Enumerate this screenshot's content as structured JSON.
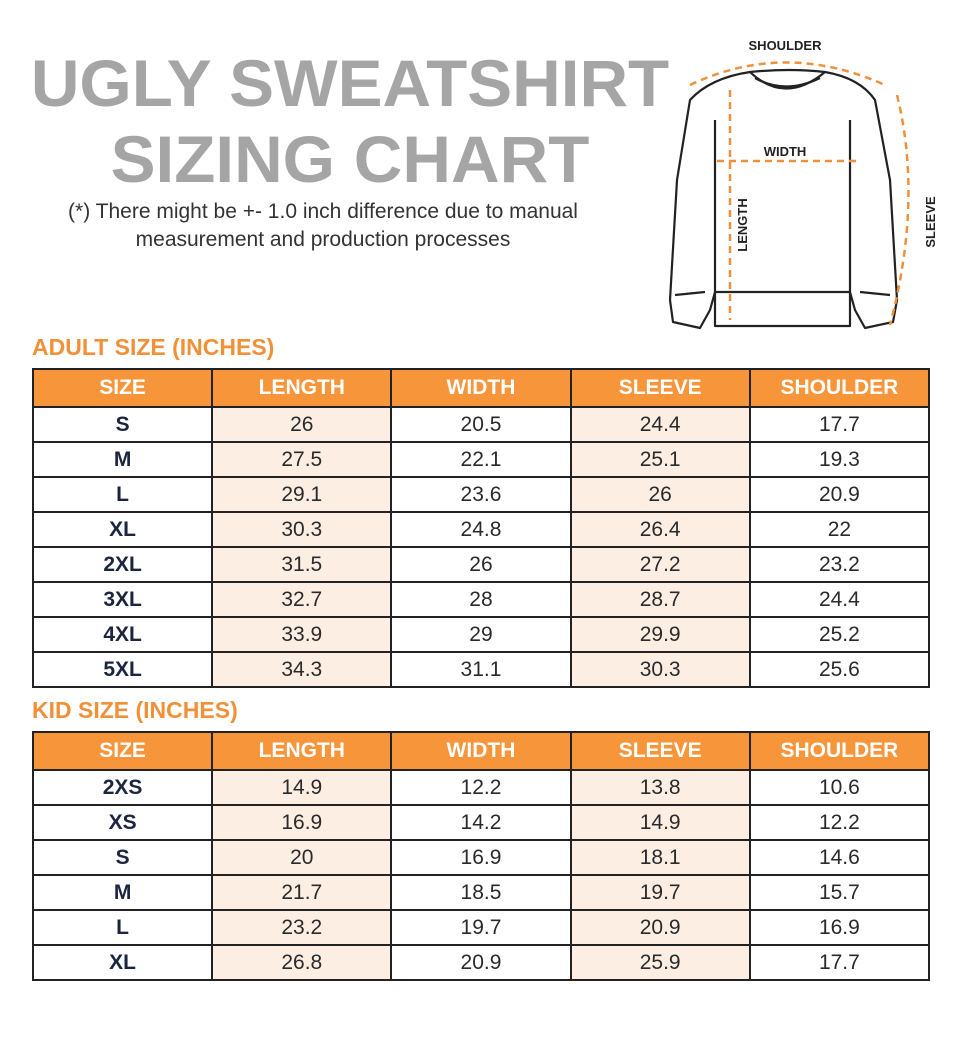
{
  "title": {
    "line1": "UGLY SWEATSHIRT",
    "line2": "SIZING CHART"
  },
  "note": "(*) There might be +- 1.0 inch difference due to manual measurement and production processes",
  "diagram": {
    "shoulder": "SHOULDER",
    "width": "WIDTH",
    "length": "LENGTH",
    "sleeve": "SLEEVE"
  },
  "colors": {
    "accent": "#f7953a",
    "tint": "#fdeee3",
    "title": "#a5a5a5"
  },
  "columns": [
    "SIZE",
    "LENGTH",
    "WIDTH",
    "SLEEVE",
    "SHOULDER"
  ],
  "adult": {
    "label": "ADULT SIZE (INCHES)",
    "rows": [
      [
        "S",
        "26",
        "20.5",
        "24.4",
        "17.7"
      ],
      [
        "M",
        "27.5",
        "22.1",
        "25.1",
        "19.3"
      ],
      [
        "L",
        "29.1",
        "23.6",
        "26",
        "20.9"
      ],
      [
        "XL",
        "30.3",
        "24.8",
        "26.4",
        "22"
      ],
      [
        "2XL",
        "31.5",
        "26",
        "27.2",
        "23.2"
      ],
      [
        "3XL",
        "32.7",
        "28",
        "28.7",
        "24.4"
      ],
      [
        "4XL",
        "33.9",
        "29",
        "29.9",
        "25.2"
      ],
      [
        "5XL",
        "34.3",
        "31.1",
        "30.3",
        "25.6"
      ]
    ]
  },
  "kid": {
    "label": "KID SIZE (INCHES)",
    "rows": [
      [
        "2XS",
        "14.9",
        "12.2",
        "13.8",
        "10.6"
      ],
      [
        "XS",
        "16.9",
        "14.2",
        "14.9",
        "12.2"
      ],
      [
        "S",
        "20",
        "16.9",
        "18.1",
        "14.6"
      ],
      [
        "M",
        "21.7",
        "18.5",
        "19.7",
        "15.7"
      ],
      [
        "L",
        "23.2",
        "19.7",
        "20.9",
        "16.9"
      ],
      [
        "XL",
        "26.8",
        "20.9",
        "25.9",
        "17.7"
      ]
    ]
  }
}
